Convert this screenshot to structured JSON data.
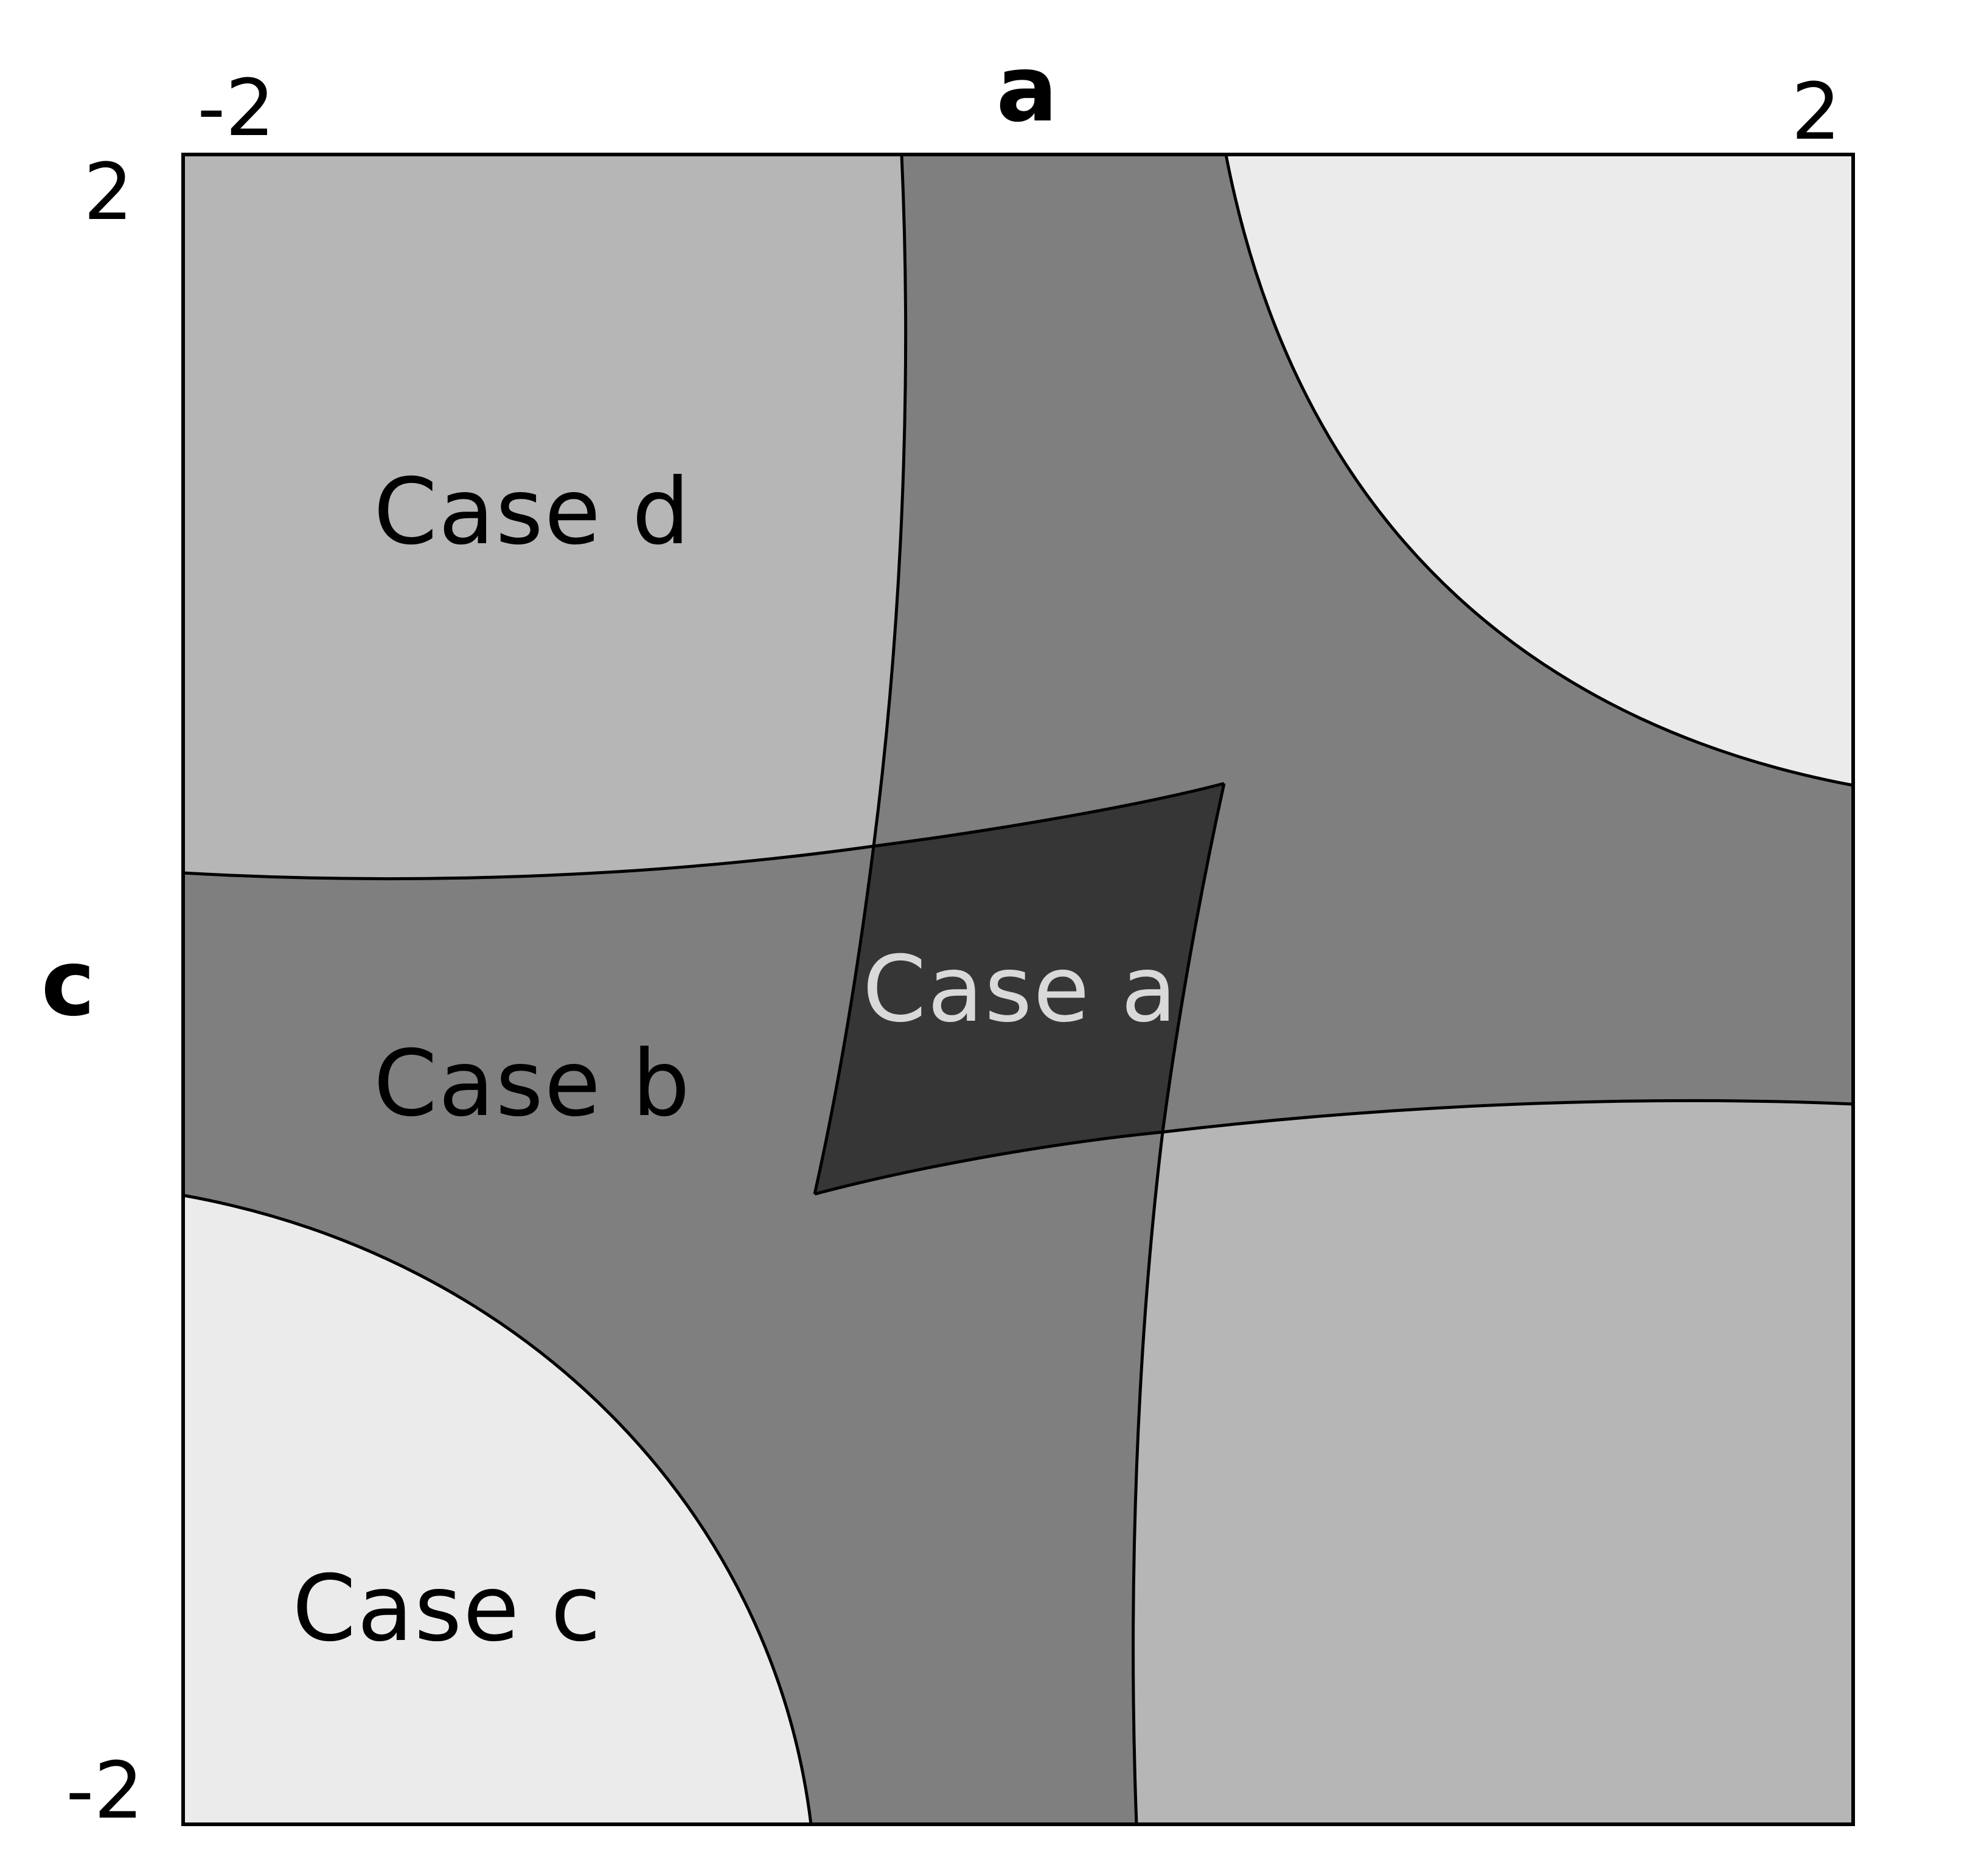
{
  "axes": {
    "horizontal": {
      "name": "a",
      "min_label": "-2",
      "max_label": "2",
      "range": [
        -2,
        2
      ]
    },
    "vertical": {
      "name": "c",
      "min_label": "-2",
      "max_label": "2",
      "range": [
        -2,
        2
      ]
    }
  },
  "regions": [
    {
      "id": "case-a",
      "label": "Case a",
      "fill": "#363636",
      "label_color": "#d9d9d9"
    },
    {
      "id": "case-b",
      "label": "Case b",
      "fill": "#7f7f7f",
      "label_color": "#000000"
    },
    {
      "id": "case-c",
      "label": "Case c",
      "fill": "#ebebeb",
      "label_color": "#000000"
    },
    {
      "id": "case-d",
      "label": "Case d",
      "fill": "#b6b6b6",
      "label_color": "#000000"
    }
  ]
}
